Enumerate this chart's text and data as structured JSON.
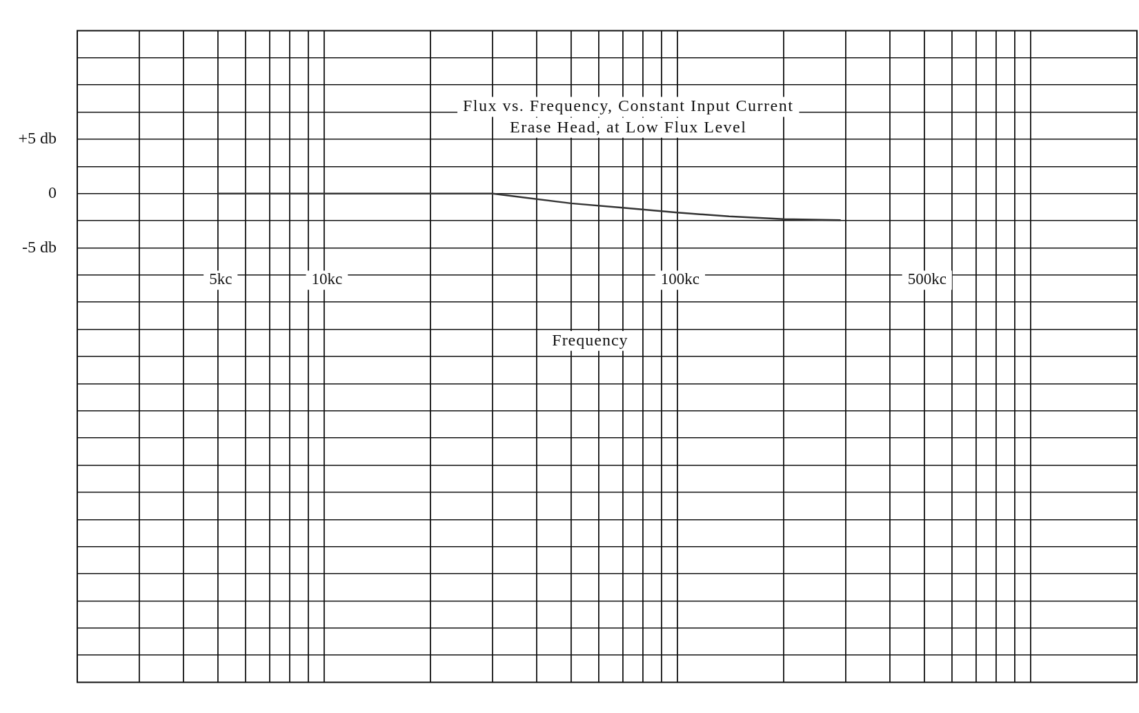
{
  "chart_data": {
    "type": "line",
    "title": "Flux vs. Frequency, Constant Input Current",
    "subtitle": "Erase Head, at Low Flux Level",
    "xlabel": "Frequency",
    "x": [
      5,
      10,
      20,
      30,
      50,
      70,
      100,
      140,
      200,
      290
    ],
    "series": [
      {
        "color": "#333333",
        "values": [
          0,
          0,
          0,
          0,
          -0.9,
          -1.3,
          -1.75,
          -2.1,
          -2.35,
          -2.45
        ]
      }
    ],
    "log": "x",
    "xlim": [
      2,
      2000
    ],
    "ylim": [
      -45,
      15
    ],
    "xticks": [
      {
        "value": 3,
        "label": null
      },
      {
        "value": 4,
        "label": null
      },
      {
        "value": 5,
        "label": "5kc"
      },
      {
        "value": 6,
        "label": null
      },
      {
        "value": 7,
        "label": null
      },
      {
        "value": 8,
        "label": null
      },
      {
        "value": 9,
        "label": null
      },
      {
        "value": 10,
        "label": "10kc"
      },
      {
        "value": 20,
        "label": null
      },
      {
        "value": 30,
        "label": null
      },
      {
        "value": 40,
        "label": null
      },
      {
        "value": 50,
        "label": null
      },
      {
        "value": 60,
        "label": null
      },
      {
        "value": 70,
        "label": null
      },
      {
        "value": 80,
        "label": null
      },
      {
        "value": 90,
        "label": null
      },
      {
        "value": 100,
        "label": "100kc"
      },
      {
        "value": 200,
        "label": null
      },
      {
        "value": 300,
        "label": null
      },
      {
        "value": 400,
        "label": null
      },
      {
        "value": 500,
        "label": "500kc"
      },
      {
        "value": 600,
        "label": null
      },
      {
        "value": 700,
        "label": null
      },
      {
        "value": 800,
        "label": null
      },
      {
        "value": 900,
        "label": null
      },
      {
        "value": 1000,
        "label": null
      }
    ],
    "yticks": [
      {
        "value": 12.5,
        "label": null
      },
      {
        "value": 10,
        "label": null
      },
      {
        "value": 7.5,
        "label": null
      },
      {
        "value": 5,
        "label": "+5 db"
      },
      {
        "value": 2.5,
        "label": null
      },
      0,
      {
        "value": -2.5,
        "label": null
      },
      {
        "value": -5,
        "label": "-5 db"
      },
      {
        "value": -7.5,
        "label": null
      },
      {
        "value": -10,
        "label": null
      },
      {
        "value": -12.5,
        "label": null
      },
      {
        "value": -15,
        "label": null
      },
      {
        "value": -17.5,
        "label": null
      },
      {
        "value": -20,
        "label": null
      },
      {
        "value": -22.5,
        "label": null
      },
      {
        "value": -25,
        "label": null
      },
      {
        "value": -27.5,
        "label": null
      },
      {
        "value": -30,
        "label": null
      },
      {
        "value": -32.5,
        "label": null
      },
      {
        "value": -35,
        "label": null
      },
      {
        "value": -37.5,
        "label": null
      },
      {
        "value": -40,
        "label": null
      },
      {
        "value": -42.5,
        "label": null
      }
    ],
    "grid": true,
    "marker": "none",
    "line_style": "solid",
    "legend": false
  }
}
